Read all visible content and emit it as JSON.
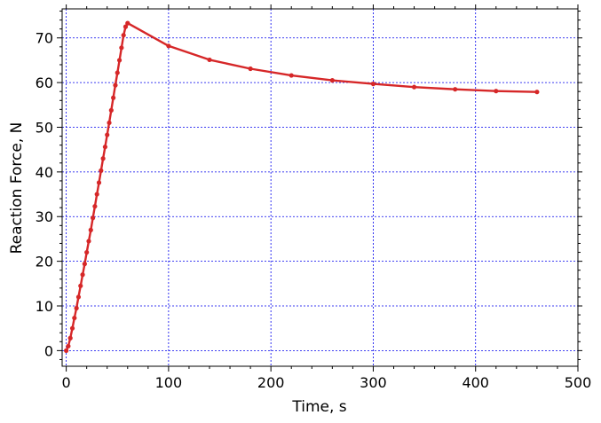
{
  "chart_data": {
    "type": "line",
    "title": "",
    "xlabel": "Time, s",
    "ylabel": "Reaction Force, N",
    "xlim": [
      -4,
      500
    ],
    "ylim": [
      -3.5,
      76.5
    ],
    "x_major_ticks": [
      0,
      100,
      200,
      300,
      400,
      500
    ],
    "x_minor_step": 20,
    "y_major_ticks": [
      0,
      10,
      20,
      30,
      40,
      50,
      60,
      70
    ],
    "y_minor_step": 2,
    "grid": true,
    "legend": "none",
    "colors": {
      "series": "#d62728",
      "grid": "#0000ee"
    },
    "series": [
      {
        "marker": "circle",
        "x": [
          0,
          2,
          4,
          6,
          8,
          10,
          12,
          14,
          16,
          18,
          20,
          22,
          24,
          26,
          28,
          30,
          32,
          34,
          36,
          38,
          40,
          42,
          44,
          46,
          48,
          50,
          52,
          54,
          56,
          58,
          60,
          100,
          140,
          180,
          220,
          260,
          300,
          340,
          380,
          420,
          460
        ],
        "y": [
          0,
          1.0,
          2.8,
          5.0,
          7.3,
          9.5,
          12.0,
          14.5,
          17.0,
          19.4,
          22.0,
          24.5,
          27.0,
          29.7,
          32.3,
          35.0,
          37.6,
          40.3,
          43.0,
          45.6,
          48.3,
          51.0,
          53.8,
          56.6,
          59.4,
          62.2,
          65.0,
          67.8,
          70.6,
          72.5,
          73.3,
          68.2,
          65.1,
          63.1,
          61.6,
          60.5,
          59.7,
          59.0,
          58.5,
          58.1,
          57.9
        ]
      }
    ]
  }
}
